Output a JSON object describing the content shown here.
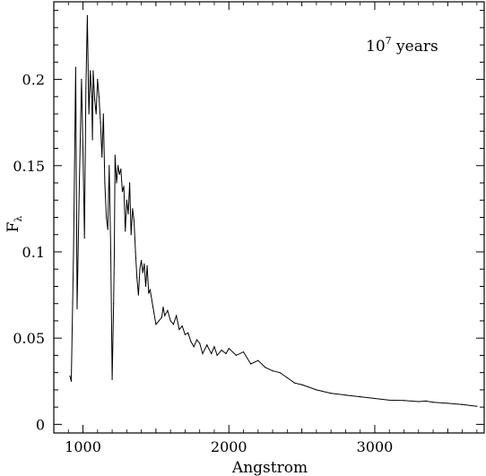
{
  "chart_data": {
    "type": "line",
    "title": "",
    "xlabel": "Angstrom",
    "ylabel_main": "F",
    "ylabel_sub": "λ",
    "annotation": {
      "base": "10",
      "exponent": "7",
      "suffix": " years"
    },
    "xlim": [
      800,
      3750
    ],
    "ylim": [
      -0.005,
      0.245
    ],
    "x_ticks": [
      1000,
      2000,
      3000
    ],
    "x_tick_labels": [
      "1000",
      "2000",
      "3000"
    ],
    "y_ticks": [
      0,
      0.05,
      0.1,
      0.15,
      0.2
    ],
    "y_tick_labels": [
      "0",
      "0.05",
      "0.1",
      "0.15",
      "0.2"
    ],
    "grid": false,
    "line_color": "#000000",
    "series": [
      {
        "x": [
          910,
          920,
          935,
          950,
          960,
          975,
          990,
          1000,
          1010,
          1020,
          1030,
          1040,
          1050,
          1060,
          1065,
          1070,
          1080,
          1090,
          1100,
          1110,
          1120,
          1130,
          1140,
          1150,
          1160,
          1170,
          1180,
          1190,
          1200,
          1210,
          1215,
          1220,
          1230,
          1240,
          1250,
          1260,
          1270,
          1280,
          1290,
          1300,
          1310,
          1320,
          1330,
          1340,
          1350,
          1360,
          1370,
          1380,
          1390,
          1400,
          1410,
          1420,
          1430,
          1440,
          1450,
          1460,
          1480,
          1500,
          1520,
          1540,
          1550,
          1560,
          1580,
          1600,
          1620,
          1640,
          1660,
          1680,
          1700,
          1720,
          1740,
          1760,
          1780,
          1800,
          1820,
          1850,
          1880,
          1900,
          1920,
          1950,
          1980,
          2000,
          2050,
          2100,
          2150,
          2200,
          2250,
          2300,
          2350,
          2400,
          2450,
          2500,
          2600,
          2700,
          2800,
          2900,
          3000,
          3100,
          3200,
          3300,
          3350,
          3400,
          3500,
          3600,
          3700
        ],
        "y": [
          0.028,
          0.025,
          0.1,
          0.207,
          0.067,
          0.14,
          0.2,
          0.16,
          0.108,
          0.195,
          0.237,
          0.18,
          0.205,
          0.19,
          0.165,
          0.205,
          0.188,
          0.18,
          0.2,
          0.19,
          0.175,
          0.155,
          0.18,
          0.14,
          0.12,
          0.113,
          0.15,
          0.1,
          0.026,
          0.07,
          0.1,
          0.156,
          0.14,
          0.15,
          0.145,
          0.148,
          0.135,
          0.138,
          0.112,
          0.13,
          0.122,
          0.14,
          0.11,
          0.125,
          0.118,
          0.1,
          0.085,
          0.075,
          0.09,
          0.095,
          0.088,
          0.093,
          0.08,
          0.092,
          0.076,
          0.078,
          0.068,
          0.058,
          0.06,
          0.062,
          0.068,
          0.063,
          0.066,
          0.06,
          0.058,
          0.063,
          0.055,
          0.057,
          0.052,
          0.053,
          0.048,
          0.045,
          0.049,
          0.047,
          0.041,
          0.046,
          0.041,
          0.045,
          0.04,
          0.043,
          0.041,
          0.044,
          0.04,
          0.042,
          0.035,
          0.037,
          0.033,
          0.031,
          0.03,
          0.027,
          0.024,
          0.023,
          0.02,
          0.018,
          0.017,
          0.016,
          0.015,
          0.014,
          0.0138,
          0.0132,
          0.0135,
          0.0128,
          0.0122,
          0.0115,
          0.0105
        ]
      }
    ]
  }
}
